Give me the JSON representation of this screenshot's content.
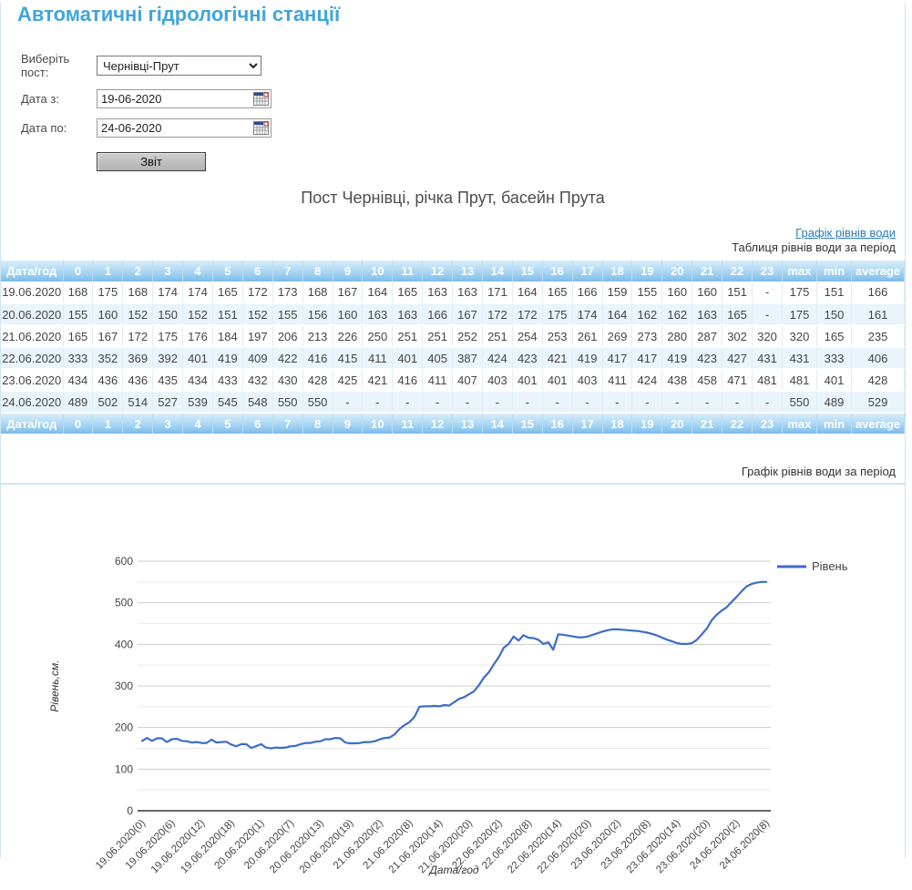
{
  "header": {
    "title": "Автоматичні гідрологічні станції"
  },
  "form": {
    "post_label": "Виберіть пост:",
    "post_select": {
      "value": "Чернівці-Прут"
    },
    "date_from": {
      "label": "Дата з:",
      "value": "19-06-2020"
    },
    "date_to": {
      "label": "Дата по:",
      "value": "24-06-2020"
    },
    "submit_label": "Звіт"
  },
  "report": {
    "heading": "Пост Чернівці, річка Прут, басейн Прута",
    "chart_link": "Графік рівнів води",
    "table_caption": "Таблиця рівнів води за період"
  },
  "chart_section": {
    "caption": "Графік рівнів води за період"
  },
  "table": {
    "columns": [
      "Дата/год",
      "0",
      "1",
      "2",
      "3",
      "4",
      "5",
      "6",
      "7",
      "8",
      "9",
      "10",
      "11",
      "12",
      "13",
      "14",
      "15",
      "16",
      "17",
      "18",
      "19",
      "20",
      "21",
      "22",
      "23",
      "max",
      "min",
      "average"
    ],
    "rows": [
      {
        "date": "19.06.2020",
        "values": [
          168,
          175,
          168,
          174,
          174,
          165,
          172,
          173,
          168,
          167,
          164,
          165,
          163,
          163,
          171,
          164,
          165,
          166,
          159,
          155,
          160,
          160,
          151,
          "-"
        ],
        "max": 175,
        "min": 151,
        "average": 166
      },
      {
        "date": "20.06.2020",
        "values": [
          155,
          160,
          152,
          150,
          152,
          151,
          152,
          155,
          156,
          160,
          163,
          163,
          166,
          167,
          172,
          172,
          175,
          174,
          164,
          162,
          162,
          163,
          165,
          "-"
        ],
        "max": 175,
        "min": 150,
        "average": 161
      },
      {
        "date": "21.06.2020",
        "values": [
          165,
          167,
          172,
          175,
          176,
          184,
          197,
          206,
          213,
          226,
          250,
          251,
          251,
          252,
          251,
          254,
          253,
          261,
          269,
          273,
          280,
          287,
          302,
          320
        ],
        "max": 320,
        "min": 165,
        "average": 235
      },
      {
        "date": "22.06.2020",
        "values": [
          333,
          352,
          369,
          392,
          401,
          419,
          409,
          422,
          416,
          415,
          411,
          401,
          405,
          387,
          424,
          423,
          421,
          419,
          417,
          417,
          419,
          423,
          427,
          431
        ],
        "max": 431,
        "min": 333,
        "average": 406
      },
      {
        "date": "23.06.2020",
        "values": [
          434,
          436,
          436,
          435,
          434,
          433,
          432,
          430,
          428,
          425,
          421,
          416,
          411,
          407,
          403,
          401,
          401,
          403,
          411,
          424,
          438,
          458,
          471,
          481
        ],
        "max": 481,
        "min": 401,
        "average": 428
      },
      {
        "date": "24.06.2020",
        "values": [
          489,
          502,
          514,
          527,
          539,
          545,
          548,
          550,
          550,
          "-",
          "-",
          "-",
          "-",
          "-",
          "-",
          "-",
          "-",
          "-",
          "-",
          "-",
          "-",
          "-",
          "-",
          "-"
        ],
        "max": 550,
        "min": 489,
        "average": 529
      }
    ]
  },
  "chart_data": {
    "type": "line",
    "title": "Графік рівнів води за період",
    "xlabel": "Дата/год",
    "ylabel": "Рівень,см.",
    "ylim": [
      0,
      600
    ],
    "y_ticks": [
      0,
      100,
      200,
      300,
      400,
      500,
      600
    ],
    "minor_grid_step": 50,
    "grid": true,
    "legend_position": "top-right",
    "line_color": "#3d6cc8",
    "tick_every": 6,
    "x_tick_labels": [
      "19.06.2020(0)",
      "19.06.2020(6)",
      "19.06.2020(12)",
      "19.06.2020(18)",
      "20.06.2020(1)",
      "20.06.2020(7)",
      "20.06.2020(13)",
      "20.06.2020(19)",
      "21.06.2020(2)",
      "21.06.2020(8)",
      "21.06.2020(14)",
      "21.06.2020(20)",
      "22.06.2020(2)",
      "22.06.2020(8)",
      "22.06.2020(14)",
      "22.06.2020(20)",
      "23.06.2020(2)",
      "23.06.2020(8)",
      "23.06.2020(14)",
      "23.06.2020(20)",
      "24.06.2020(2)",
      "24.06.2020(8)"
    ],
    "series": [
      {
        "name": "Рівень",
        "values": [
          168,
          175,
          168,
          174,
          174,
          165,
          172,
          173,
          168,
          167,
          164,
          165,
          163,
          163,
          171,
          164,
          165,
          166,
          159,
          155,
          160,
          160,
          151,
          155,
          160,
          152,
          150,
          152,
          151,
          152,
          155,
          156,
          160,
          163,
          163,
          166,
          167,
          172,
          172,
          175,
          174,
          164,
          162,
          162,
          163,
          165,
          165,
          167,
          172,
          175,
          176,
          184,
          197,
          206,
          213,
          226,
          250,
          251,
          251,
          252,
          251,
          254,
          253,
          261,
          269,
          273,
          280,
          287,
          302,
          320,
          333,
          352,
          369,
          392,
          401,
          419,
          409,
          422,
          416,
          415,
          411,
          401,
          405,
          387,
          424,
          423,
          421,
          419,
          417,
          417,
          419,
          423,
          427,
          431,
          434,
          436,
          436,
          435,
          434,
          433,
          432,
          430,
          428,
          425,
          421,
          416,
          411,
          407,
          403,
          401,
          401,
          403,
          411,
          424,
          438,
          458,
          471,
          481,
          489,
          502,
          514,
          527,
          539,
          545,
          548,
          550,
          550
        ]
      }
    ]
  },
  "colors": {
    "accent_title": "#42a5d8",
    "link": "#2b7bb9",
    "table_header_top": "#d9eefb",
    "table_header_bottom": "#7cbbe9",
    "row_alt": "#e9f4fb",
    "chart_line": "#3d6cc8"
  }
}
